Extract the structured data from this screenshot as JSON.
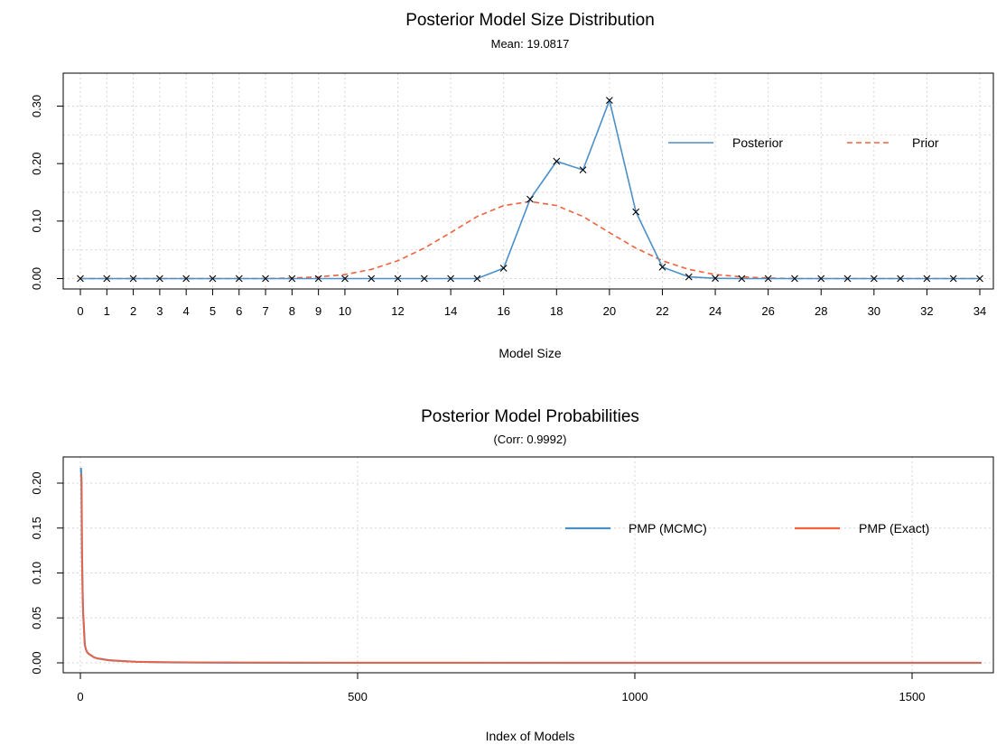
{
  "chart_data": [
    {
      "type": "line",
      "title": "Posterior Model Size Distribution",
      "subtitle": "Mean: 19.0817",
      "xlabel": "Model Size",
      "ylabel": "",
      "x": [
        0,
        1,
        2,
        3,
        4,
        5,
        6,
        7,
        8,
        9,
        10,
        11,
        12,
        13,
        14,
        15,
        16,
        17,
        18,
        19,
        20,
        21,
        22,
        23,
        24,
        25,
        26,
        27,
        28,
        29,
        30,
        31,
        32,
        33,
        34
      ],
      "xlim": [
        0,
        34
      ],
      "ylim": [
        0,
        0.31
      ],
      "x_tick_labels": [
        "0",
        "1",
        "2",
        "3",
        "4",
        "5",
        "6",
        "7",
        "8",
        "9",
        "10",
        "12",
        "14",
        "16",
        "18",
        "20",
        "22",
        "24",
        "26",
        "28",
        "30",
        "32",
        "34"
      ],
      "y_tick_labels": [
        "0.00",
        "0.10",
        "0.20",
        "0.30"
      ],
      "grid": true,
      "legend_position": "top-right",
      "series": [
        {
          "name": "Posterior",
          "color": "#4a8fc7",
          "style": "solid",
          "markers": "x",
          "values": [
            0,
            0,
            0,
            0,
            0,
            0,
            0,
            0,
            0,
            0,
            0,
            0,
            0,
            0,
            0,
            0,
            0.018,
            0.138,
            0.204,
            0.189,
            0.31,
            0.116,
            0.02,
            0.003,
            0.0005,
            0,
            0,
            0,
            0,
            0,
            0,
            0,
            0,
            0,
            0
          ]
        },
        {
          "name": "Prior",
          "color": "#f0623f",
          "style": "dashed",
          "values": [
            0,
            0,
            0,
            0,
            0,
            0,
            0,
            0,
            0.001,
            0.003,
            0.007,
            0.016,
            0.031,
            0.053,
            0.08,
            0.108,
            0.127,
            0.134,
            0.127,
            0.108,
            0.08,
            0.053,
            0.031,
            0.016,
            0.007,
            0.003,
            0.001,
            0,
            0,
            0,
            0,
            0,
            0,
            0,
            0
          ]
        }
      ]
    },
    {
      "type": "line",
      "title": "Posterior Model Probabilities",
      "subtitle": "(Corr: 0.9992)",
      "xlabel": "Index of Models",
      "ylabel": "",
      "xlim": [
        1,
        1625
      ],
      "ylim": [
        0,
        0.22
      ],
      "x_tick_labels": [
        "0",
        "500",
        "1000",
        "1500"
      ],
      "y_tick_labels": [
        "0.00",
        "0.05",
        "0.10",
        "0.15",
        "0.20"
      ],
      "grid": true,
      "legend_position": "top-right",
      "series": [
        {
          "name": "PMP (MCMC)",
          "color": "#4a8fc7",
          "x": [
            1,
            2,
            3,
            4,
            5,
            6,
            7,
            8,
            10,
            12,
            15,
            20,
            25,
            30,
            40,
            50,
            60,
            80,
            100,
            130,
            170,
            220,
            300,
            400,
            600,
            900,
            1200,
            1625
          ],
          "values": [
            0.217,
            0.205,
            0.12,
            0.08,
            0.055,
            0.045,
            0.032,
            0.02,
            0.015,
            0.012,
            0.01,
            0.008,
            0.006,
            0.005,
            0.004,
            0.003,
            0.0025,
            0.0018,
            0.0012,
            0.0008,
            0.0005,
            0.0003,
            0.0002,
            0.0001,
            5e-05,
            2e-05,
            1e-05,
            0
          ]
        },
        {
          "name": "PMP (Exact)",
          "color": "#f0623f",
          "x": [
            1,
            2,
            3,
            4,
            5,
            6,
            7,
            8,
            10,
            12,
            15,
            20,
            25,
            30,
            40,
            50,
            60,
            80,
            100,
            130,
            170,
            220,
            300,
            400,
            600,
            900,
            1200,
            1625
          ],
          "values": [
            0.21,
            0.2,
            0.118,
            0.079,
            0.054,
            0.044,
            0.031,
            0.02,
            0.015,
            0.012,
            0.01,
            0.008,
            0.006,
            0.005,
            0.004,
            0.003,
            0.0025,
            0.0018,
            0.0012,
            0.0008,
            0.0005,
            0.0003,
            0.0002,
            0.0001,
            5e-05,
            2e-05,
            1e-05,
            0
          ]
        }
      ]
    }
  ]
}
